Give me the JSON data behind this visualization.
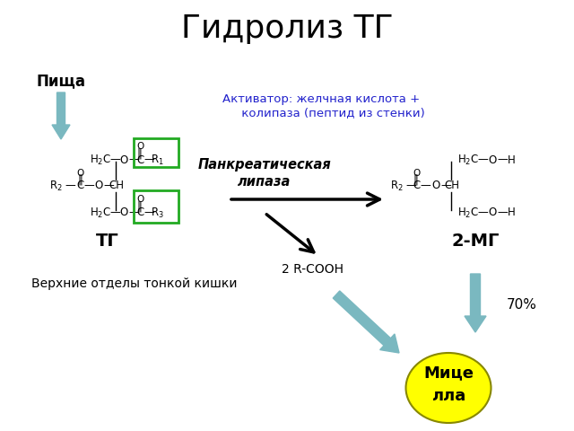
{
  "title": "Гидролиз ТГ",
  "title_fontsize": 26,
  "bg_color": "#ffffff",
  "activator_text": "Активатор: желчная кислота +\n     колипаза (пептид из стенки)",
  "activator_color": "#2222cc",
  "pishcha_text": "Пища",
  "lipase_text": "Панкреатическая\nлипаза",
  "rcooh_text": "2 R-COOH",
  "tg_label": "ТГ",
  "mg_label": "2-МГ",
  "bottom_text": "Верхние отделы тонкой кишки",
  "percent_text": "70%",
  "micella_text": "Мице\nлла",
  "micella_color": "#ffff00",
  "micella_ec": "#cccc00",
  "arrow_color_light": "#7ab8c0",
  "green_box_color": "#22aa22",
  "fs_chem": 8.5
}
